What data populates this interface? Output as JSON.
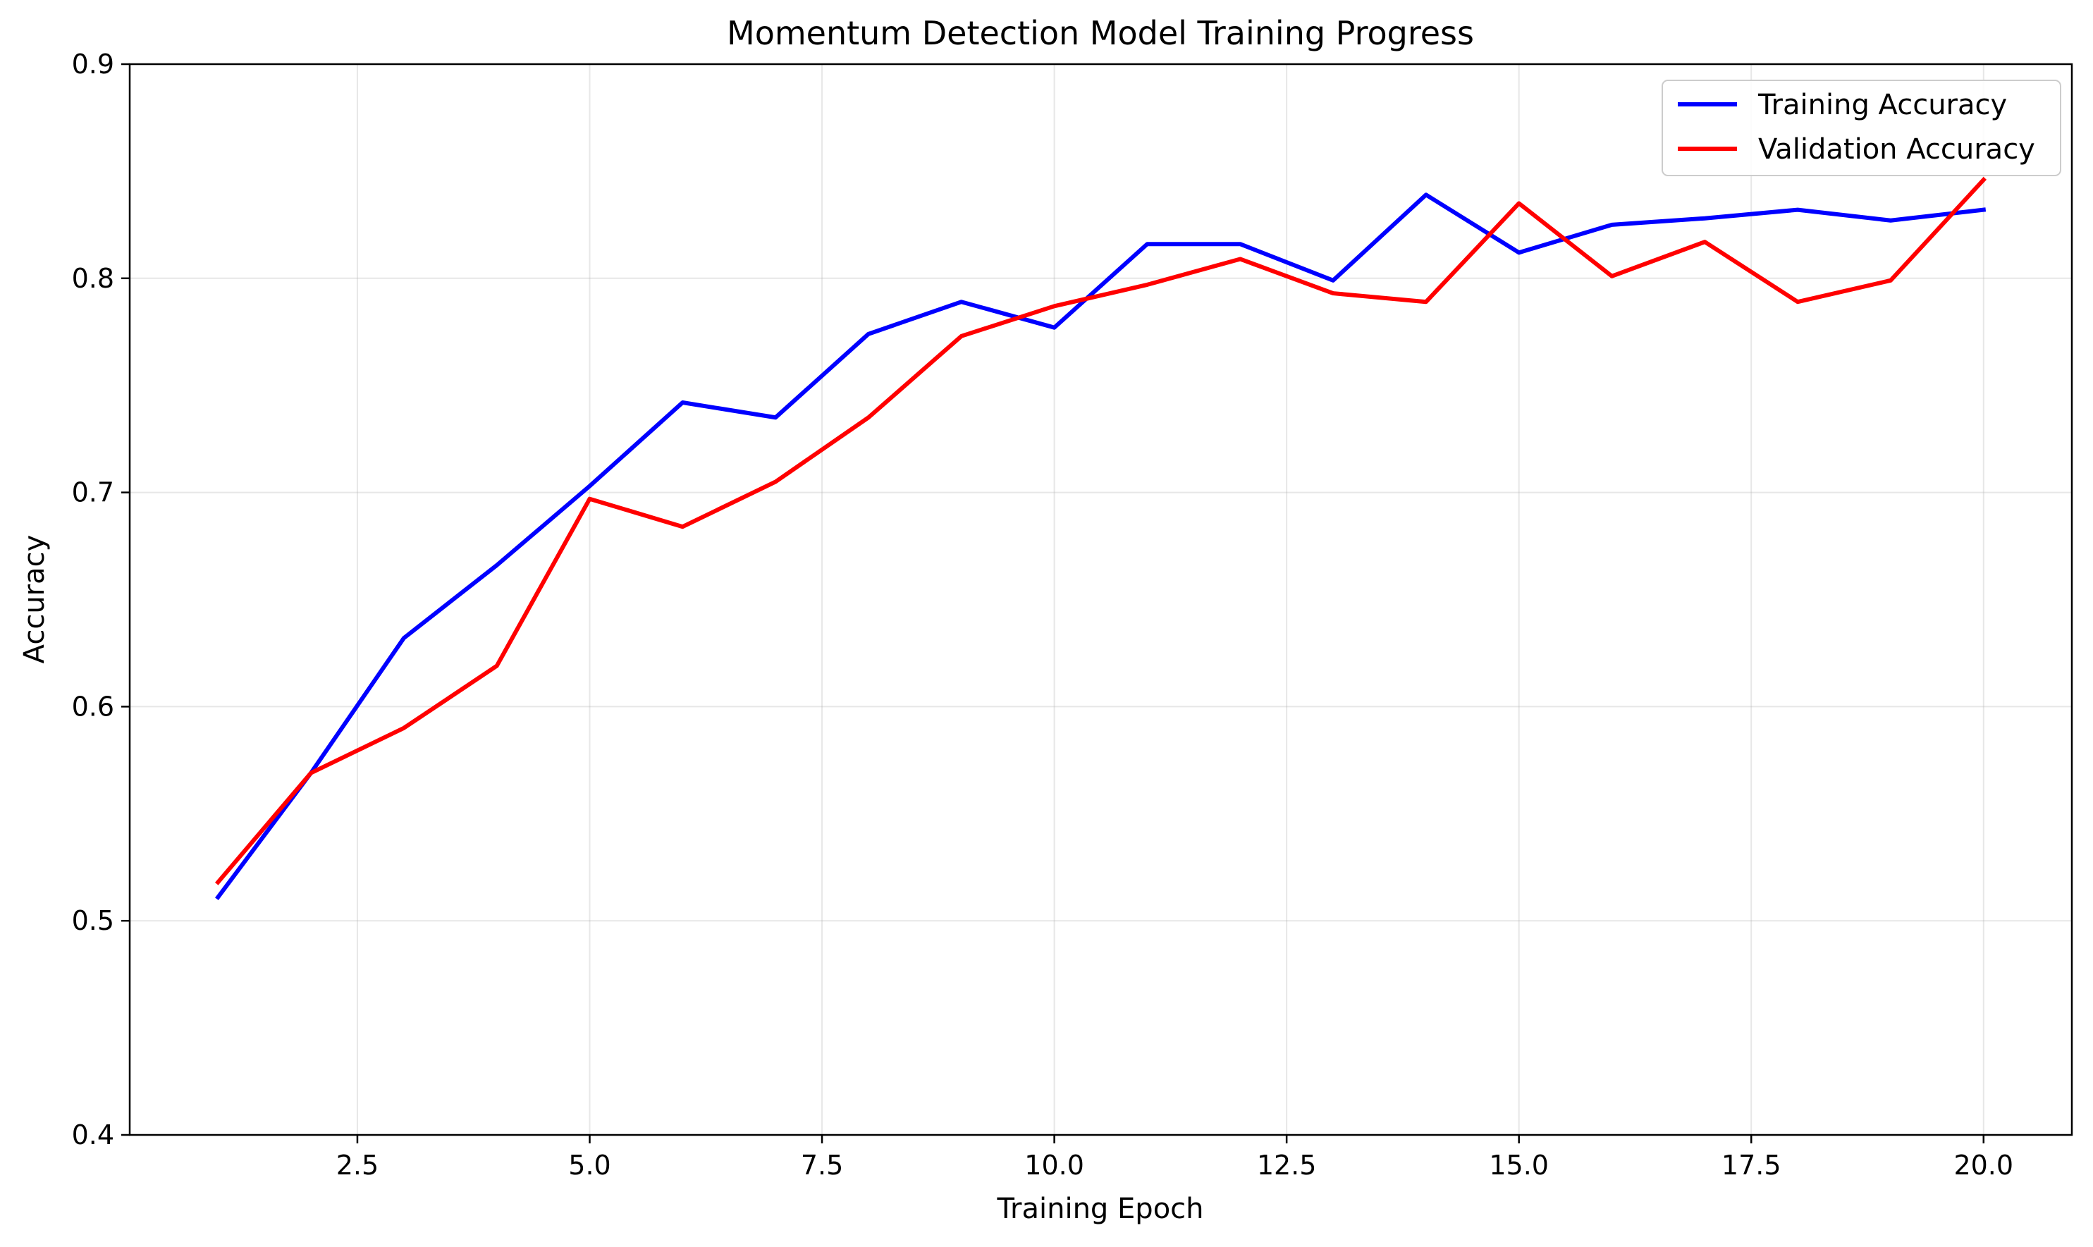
{
  "chart_data": {
    "type": "line",
    "title": "Momentum Detection Model Training Progress",
    "xlabel": "Training Epoch",
    "ylabel": "Accuracy",
    "xlim": [
      0.05,
      20.95
    ],
    "ylim": [
      0.4,
      0.9
    ],
    "xticks": [
      2.5,
      5.0,
      7.5,
      10.0,
      12.5,
      15.0,
      17.5,
      20.0
    ],
    "xtick_labels": [
      "2.5",
      "5.0",
      "7.5",
      "10.0",
      "12.5",
      "15.0",
      "17.5",
      "20.0"
    ],
    "yticks": [
      0.4,
      0.5,
      0.6,
      0.7,
      0.8,
      0.9
    ],
    "ytick_labels": [
      "0.4",
      "0.5",
      "0.6",
      "0.7",
      "0.8",
      "0.9"
    ],
    "grid": true,
    "legend_position": "top-right",
    "x": [
      1,
      2,
      3,
      4,
      5,
      6,
      7,
      8,
      9,
      10,
      11,
      12,
      13,
      14,
      15,
      16,
      17,
      18,
      19,
      20
    ],
    "series": [
      {
        "name": "Training Accuracy",
        "color": "#0000ff",
        "values": [
          0.511,
          0.569,
          0.632,
          0.666,
          0.703,
          0.742,
          0.735,
          0.774,
          0.789,
          0.777,
          0.816,
          0.816,
          0.799,
          0.839,
          0.812,
          0.825,
          0.828,
          0.832,
          0.827,
          0.832
        ]
      },
      {
        "name": "Validation Accuracy",
        "color": "#ff0000",
        "values": [
          0.518,
          0.569,
          0.59,
          0.619,
          0.697,
          0.684,
          0.705,
          0.735,
          0.773,
          0.787,
          0.797,
          0.809,
          0.793,
          0.789,
          0.835,
          0.801,
          0.817,
          0.789,
          0.799,
          0.846
        ]
      }
    ]
  }
}
